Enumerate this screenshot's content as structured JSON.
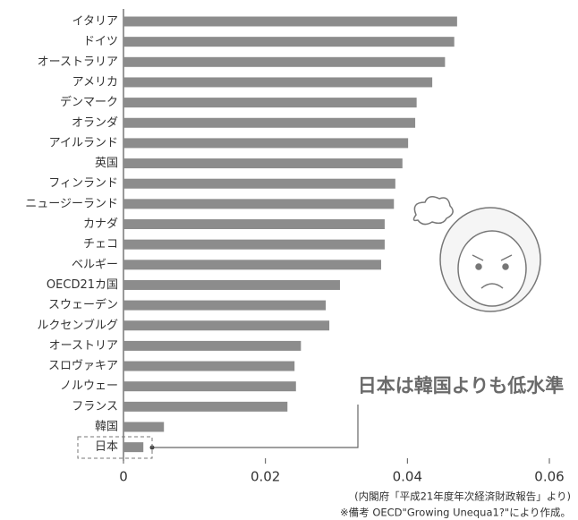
{
  "chart_data": {
    "type": "barh",
    "categories": [
      "イタリア",
      "ドイツ",
      "オーストラリア",
      "アメリカ",
      "デンマーク",
      "オランダ",
      "アイルランド",
      "英国",
      "フィンランド",
      "ニュージーランド",
      "カナダ",
      "チェコ",
      "ベルギー",
      "OECD21カ国",
      "スウェーデン",
      "ルクセンブルグ",
      "オーストリア",
      "スロヴァキア",
      "ノルウェー",
      "フランス",
      "韓国",
      "日本"
    ],
    "values": [
      0.047,
      0.0466,
      0.0453,
      0.0435,
      0.0413,
      0.0411,
      0.0401,
      0.0393,
      0.0383,
      0.0381,
      0.0368,
      0.0368,
      0.0363,
      0.0305,
      0.0285,
      0.029,
      0.025,
      0.0241,
      0.0243,
      0.0231,
      0.0057,
      0.0028
    ],
    "color": "#8c8c8c",
    "xlim": [
      0,
      0.06
    ],
    "xticks": [
      0,
      0.02,
      0.04,
      0.06
    ],
    "annotation": "日本は韓国よりも低水準",
    "notes": [
      "(内閣府「平成21年度年次経済財政報告」より)",
      "※備考 OECD\"Growing Unequa1?\"により作成。"
    ]
  }
}
